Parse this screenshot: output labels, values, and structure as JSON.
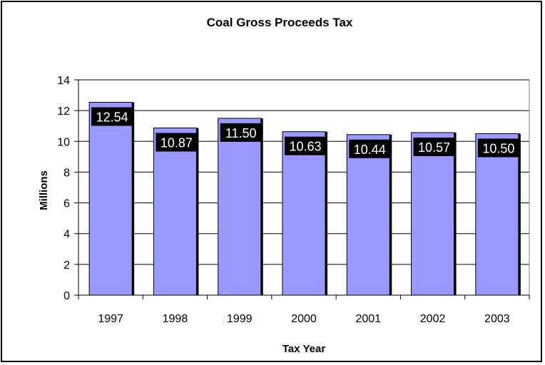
{
  "chart_data": {
    "type": "bar",
    "title": "Coal Gross Proceeds Tax",
    "xlabel": "Tax Year",
    "ylabel": "Millions",
    "categories": [
      "1997",
      "1998",
      "1999",
      "2000",
      "2001",
      "2002",
      "2003"
    ],
    "values": [
      12.54,
      10.87,
      11.5,
      10.63,
      10.44,
      10.57,
      10.5
    ],
    "data_labels": [
      "12.54",
      "10.87",
      "11.50",
      "10.63",
      "10.44",
      "10.57",
      "10.50"
    ],
    "ylim": [
      0,
      14
    ],
    "yticks": [
      0,
      2,
      4,
      6,
      8,
      10,
      12,
      14
    ],
    "grid": true,
    "legend": "none",
    "colors": {
      "bar_fill": "#9999ff",
      "bar_shadow": "#000000",
      "label_background": "#000000",
      "label_text": "#ffffff",
      "grid": "#000000"
    }
  }
}
